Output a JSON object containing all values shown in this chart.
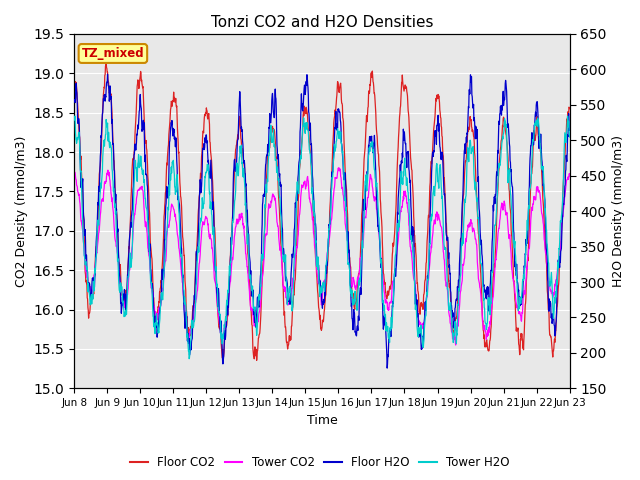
{
  "title": "Tonzi CO2 and H2O Densities",
  "xlabel": "Time",
  "ylabel_left": "CO2 Density (mmol/m3)",
  "ylabel_right": "H2O Density (mmol/m3)",
  "annotation": "TZ_mixed",
  "annotation_color": "#cc0000",
  "annotation_bg": "#ffff99",
  "annotation_border": "#cc8800",
  "ylim_left": [
    15.0,
    19.5
  ],
  "ylim_right": [
    150,
    650
  ],
  "yticks_left": [
    15.0,
    15.5,
    16.0,
    16.5,
    17.0,
    17.5,
    18.0,
    18.5,
    19.0,
    19.5
  ],
  "yticks_right": [
    150,
    200,
    250,
    300,
    350,
    400,
    450,
    500,
    550,
    600,
    650
  ],
  "colors": {
    "floor_co2": "#dd2222",
    "tower_co2": "#ff00ff",
    "floor_h2o": "#0000cc",
    "tower_h2o": "#00cccc"
  },
  "legend_labels": [
    "Floor CO2",
    "Tower CO2",
    "Floor H2O",
    "Tower H2O"
  ],
  "bg_color": "#e8e8e8",
  "n_days": 15,
  "n_points_per_day": 96,
  "x_tick_labels": [
    "Jun 8",
    "Jun 9",
    "Jun 10",
    "Jun 11",
    "Jun 12",
    "Jun 13",
    "Jun 14",
    "Jun 15",
    "Jun 16",
    "Jun 17",
    "Jun 18",
    "Jun 19",
    "Jun 20",
    "Jun 21",
    "Jun 22",
    "Jun 23"
  ]
}
